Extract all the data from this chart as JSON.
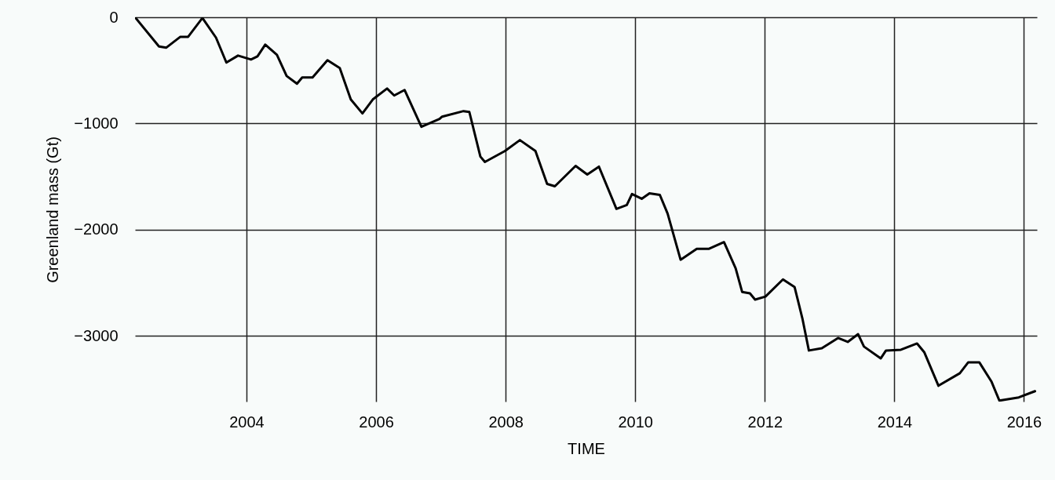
{
  "chart_data": {
    "type": "line",
    "xlabel": "TIME",
    "ylabel": "Greenland mass (Gt)",
    "xlim": [
      2002.28,
      2016.2
    ],
    "xticks": [
      2004,
      2006,
      2008,
      2010,
      2012,
      2014,
      2016
    ],
    "ylim": [
      -3620,
      0
    ],
    "yticks": [
      0,
      -1000,
      -2000,
      -3000
    ],
    "grid": true,
    "marker": "none",
    "line_style": "solid",
    "series": [
      {
        "color": "#000000",
        "x": [
          2002.29,
          2002.65,
          2002.76,
          2002.98,
          2003.1,
          2003.32,
          2003.53,
          2003.69,
          2003.87,
          2004.07,
          2004.17,
          2004.29,
          2004.47,
          2004.62,
          2004.78,
          2004.86,
          2005.02,
          2005.25,
          2005.44,
          2005.61,
          2005.79,
          2005.95,
          2006.17,
          2006.28,
          2006.44,
          2006.7,
          2006.98,
          2007.02,
          2007.35,
          2007.44,
          2007.61,
          2007.68,
          2007.99,
          2008.22,
          2008.46,
          2008.64,
          2008.76,
          2009.08,
          2009.26,
          2009.44,
          2009.71,
          2009.87,
          2009.95,
          2010.1,
          2010.22,
          2010.38,
          2010.5,
          2010.7,
          2010.95,
          2011.14,
          2011.37,
          2011.55,
          2011.65,
          2011.77,
          2011.85,
          2012.01,
          2012.28,
          2012.46,
          2012.58,
          2012.68,
          2012.88,
          2013.13,
          2013.28,
          2013.44,
          2013.53,
          2013.79,
          2013.87,
          2014.1,
          2014.35,
          2014.46,
          2014.68,
          2015.01,
          2015.14,
          2015.31,
          2015.5,
          2015.62,
          2015.92,
          2016.17
        ],
        "values": [
          -7,
          -275,
          -287,
          -184,
          -184,
          -7,
          -192,
          -427,
          -361,
          -398,
          -368,
          -258,
          -354,
          -553,
          -626,
          -567,
          -567,
          -405,
          -479,
          -774,
          -906,
          -774,
          -671,
          -737,
          -685,
          -1032,
          -958,
          -936,
          -884,
          -892,
          -1312,
          -1363,
          -1260,
          -1157,
          -1260,
          -1570,
          -1592,
          -1400,
          -1481,
          -1407,
          -1805,
          -1769,
          -1665,
          -1710,
          -1658,
          -1673,
          -1850,
          -2284,
          -2181,
          -2181,
          -2118,
          -2365,
          -2587,
          -2601,
          -2660,
          -2631,
          -2469,
          -2542,
          -2837,
          -3139,
          -3117,
          -3021,
          -3058,
          -2985,
          -3102,
          -3213,
          -3139,
          -3132,
          -3073,
          -3154,
          -3471,
          -3353,
          -3250,
          -3250,
          -3434,
          -3611,
          -3581,
          -3522
        ]
      }
    ]
  }
}
